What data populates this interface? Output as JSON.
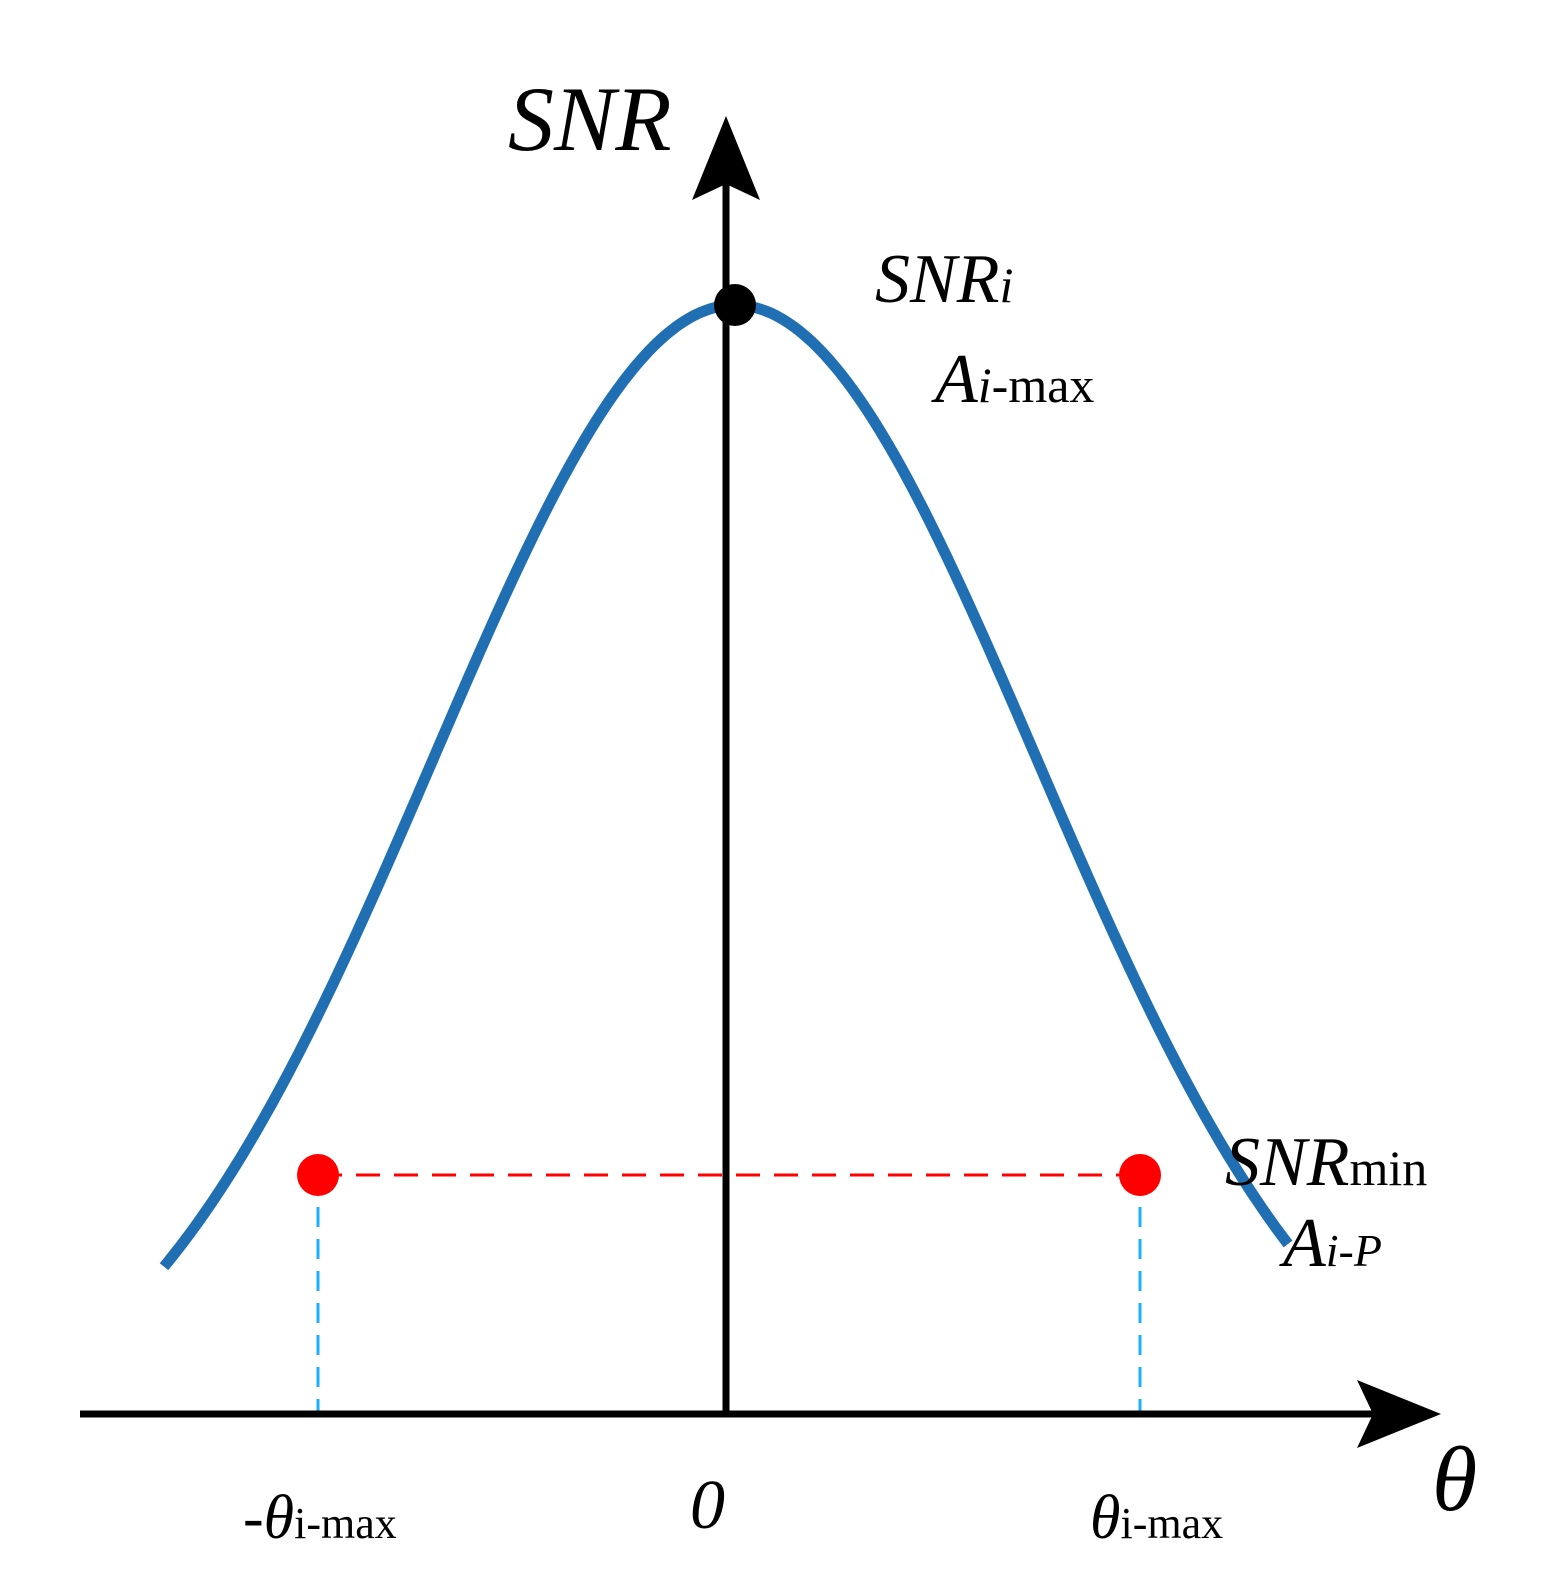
{
  "colors": {
    "curve": "#1f6fb2",
    "axis": "#000000",
    "peak_point": "#000000",
    "threshold_points": "#ff0000",
    "threshold_line": "#ff0000",
    "vertical_guides": "#1ab0ff"
  },
  "axes": {
    "y_label": "SNR",
    "x_label": "θ",
    "origin_label": "0"
  },
  "peak": {
    "label_main": "SNR",
    "label_sub": "i",
    "amp_main": "A",
    "amp_sub_italic": "i",
    "amp_sub_rest": "-max"
  },
  "threshold": {
    "label_main": "SNR",
    "label_sub": "min",
    "amp_main": "A",
    "amp_sub": "i-P"
  },
  "ticks": {
    "left_prefix": "-θ",
    "left_sub": "i-max",
    "right_prefix": "θ",
    "right_sub": "i-max"
  }
}
